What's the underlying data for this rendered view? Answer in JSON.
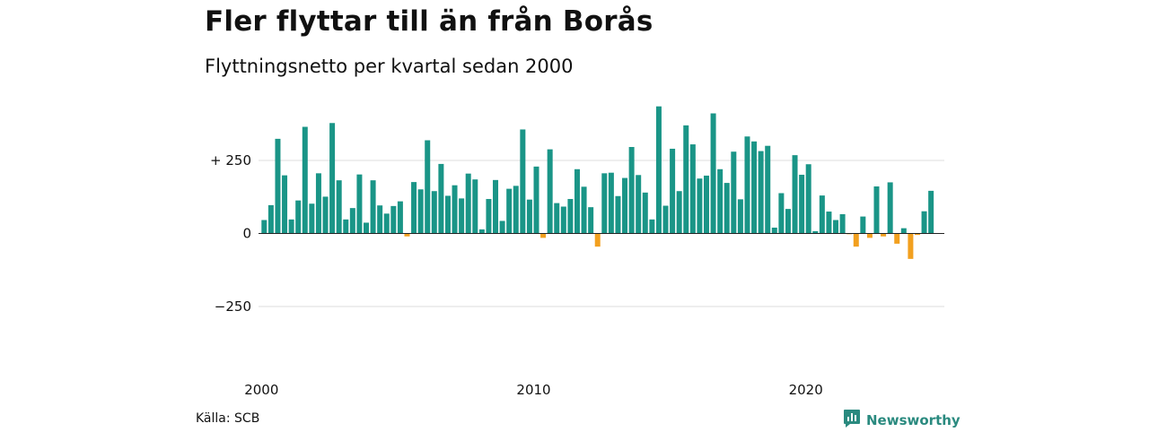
{
  "header": {
    "title": "Fler flyttar till än från Borås",
    "subtitle": "Flyttningsnetto per kvartal sedan 2000"
  },
  "footer": {
    "source": "Källa: SCB",
    "brand": "Newsworthy",
    "brand_icon": "newsworthy-logo-icon"
  },
  "colors": {
    "positive": "#1a9587",
    "negative": "#f2a01f",
    "grid": "#dddddd",
    "zero_line": "#222222",
    "brand": "#2a8a7f"
  },
  "chart_data": {
    "type": "bar",
    "title": "Fler flyttar till än från Borås",
    "subtitle": "Flyttningsnetto per kvartal sedan 2000",
    "start": "2000 Q1",
    "frequency": "quarterly",
    "ylim": [
      -400,
      450
    ],
    "y_ticks": [
      250,
      0,
      -250
    ],
    "y_tick_labels": [
      "+ 250",
      "0",
      "−250"
    ],
    "x_ticks": [
      2000,
      2010,
      2020
    ],
    "x_tick_labels": [
      "2000",
      "2010",
      "2020"
    ],
    "grid": true,
    "values": [
      46,
      97,
      324,
      199,
      48,
      113,
      365,
      102,
      206,
      126,
      378,
      182,
      48,
      87,
      202,
      37,
      182,
      96,
      68,
      94,
      110,
      -10,
      176,
      151,
      319,
      145,
      238,
      129,
      165,
      120,
      205,
      185,
      14,
      118,
      183,
      43,
      153,
      163,
      356,
      116,
      229,
      -15,
      288,
      104,
      92,
      118,
      220,
      160,
      90,
      -45,
      206,
      208,
      128,
      190,
      296,
      200,
      140,
      48,
      435,
      95,
      290,
      145,
      370,
      305,
      188,
      198,
      411,
      220,
      173,
      280,
      117,
      332,
      315,
      282,
      300,
      20,
      138,
      84,
      268,
      201,
      237,
      8,
      130,
      75,
      46,
      66,
      -2,
      -45,
      58,
      -15,
      161,
      -10,
      175,
      -35,
      18,
      -87,
      -5,
      76,
      146
    ]
  }
}
